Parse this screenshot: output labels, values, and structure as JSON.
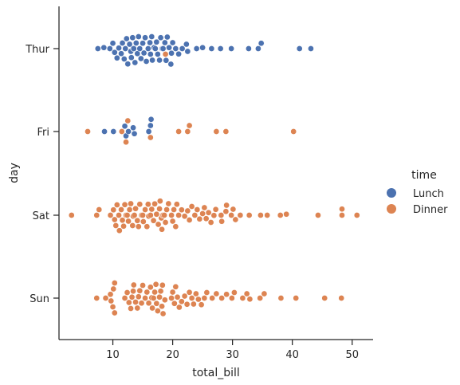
{
  "chart_data": {
    "type": "swarm",
    "xlabel": "total_bill",
    "ylabel": "day",
    "xlim": [
      1.0,
      53.5
    ],
    "x_ticks": [
      10,
      20,
      30,
      40,
      50
    ],
    "categories": [
      "Thur",
      "Fri",
      "Sat",
      "Sun"
    ],
    "legend": {
      "title": "time",
      "placement": "right"
    },
    "series": [
      {
        "name": "Lunch",
        "color": "#4c72b0",
        "points": [
          {
            "day": "Thur",
            "values": [
              7.5,
              8.5,
              9.5,
              10.0,
              10.3,
              10.7,
              11.0,
              11.4,
              11.6,
              11.9,
              12.1,
              12.3,
              12.5,
              12.8,
              13.0,
              13.1,
              13.3,
              13.4,
              13.5,
              13.7,
              13.9,
              14.1,
              14.3,
              14.5,
              14.7,
              15.0,
              15.2,
              15.4,
              15.6,
              15.9,
              16.2,
              16.3,
              16.5,
              16.6,
              16.9,
              17.1,
              17.3,
              17.5,
              17.8,
              18.0,
              18.2,
              18.3,
              18.4,
              18.7,
              18.9,
              19.1,
              19.4,
              19.7,
              19.8,
              20.0,
              20.5,
              21.0,
              21.6,
              22.3,
              22.5,
              24.0,
              25.0,
              26.5,
              28.0,
              29.8,
              32.7,
              34.3,
              34.8,
              41.2,
              43.1
            ]
          },
          {
            "day": "Fri",
            "values": [
              8.6,
              10.1,
              12.0,
              12.2,
              12.6,
              13.4,
              13.6,
              16.0,
              16.3,
              16.4
            ]
          }
        ]
      },
      {
        "name": "Dinner",
        "color": "#dd8452",
        "points": [
          {
            "day": "Thur",
            "values": [
              18.8
            ]
          },
          {
            "day": "Fri",
            "values": [
              5.8,
              11.5,
              12.2,
              12.5,
              16.3,
              21.0,
              22.5,
              22.8,
              27.3,
              28.9,
              40.2
            ]
          },
          {
            "day": "Sat",
            "values": [
              3.1,
              7.3,
              7.7,
              9.6,
              10.1,
              10.3,
              10.5,
              10.7,
              11.0,
              11.1,
              11.4,
              11.6,
              11.8,
              12.0,
              12.2,
              12.4,
              12.6,
              12.8,
              13.0,
              13.3,
              13.4,
              13.6,
              13.8,
              14.1,
              14.3,
              14.5,
              14.8,
              15.0,
              15.1,
              15.4,
              15.7,
              15.9,
              16.0,
              16.3,
              16.5,
              16.8,
              17.0,
              17.3,
              17.6,
              17.8,
              17.9,
              18.1,
              18.2,
              18.3,
              18.4,
              18.6,
              18.8,
              19.0,
              19.3,
              19.8,
              20.0,
              20.2,
              20.5,
              20.7,
              21.0,
              21.5,
              22.0,
              22.5,
              22.8,
              23.2,
              23.7,
              24.1,
              24.5,
              25.0,
              25.3,
              25.6,
              26.0,
              26.4,
              26.9,
              27.2,
              28.1,
              28.2,
              28.9,
              29.0,
              29.8,
              30.1,
              30.5,
              31.3,
              32.8,
              34.7,
              35.8,
              38.0,
              39.0,
              44.3,
              48.3,
              48.3,
              50.8
            ]
          },
          {
            "day": "Sun",
            "values": [
              7.3,
              8.8,
              9.6,
              9.7,
              10.0,
              10.1,
              10.3,
              10.3,
              12.0,
              12.4,
              12.7,
              13.0,
              13.2,
              13.4,
              13.5,
              13.8,
              14.1,
              14.3,
              14.5,
              14.8,
              15.0,
              15.4,
              15.7,
              16.0,
              16.3,
              16.5,
              16.6,
              16.8,
              17.0,
              17.2,
              17.3,
              17.5,
              17.8,
              18.0,
              18.2,
              18.3,
              18.4,
              18.7,
              19.8,
              20.0,
              20.3,
              20.5,
              20.8,
              21.1,
              21.5,
              22.0,
              22.4,
              22.8,
              23.2,
              23.5,
              23.9,
              24.3,
              24.8,
              25.3,
              25.7,
              26.6,
              27.3,
              28.2,
              29.0,
              29.9,
              30.3,
              31.7,
              32.4,
              32.9,
              34.6,
              35.3,
              38.1,
              40.6,
              45.4,
              48.2
            ]
          }
        ]
      }
    ]
  }
}
